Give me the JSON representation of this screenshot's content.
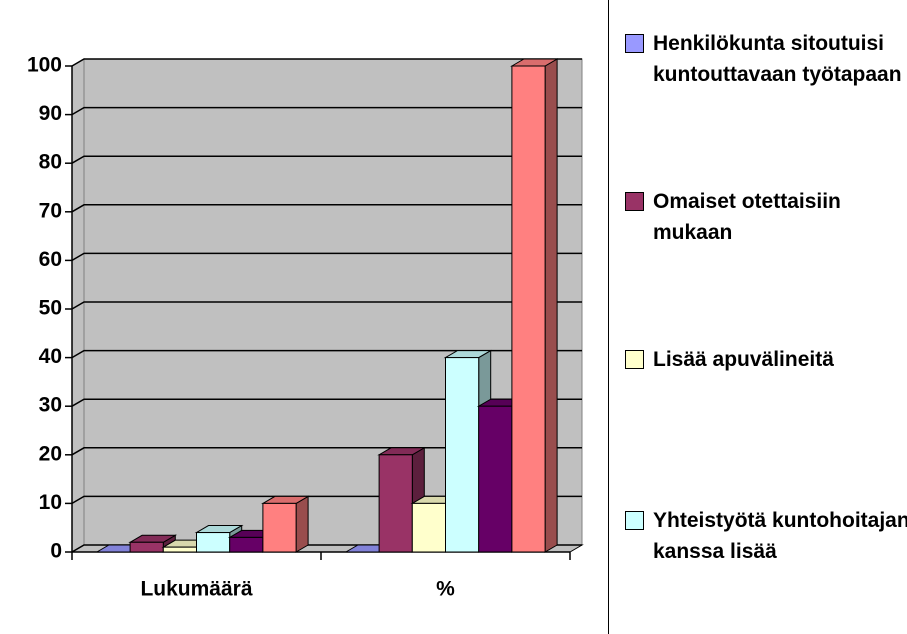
{
  "chart_data": {
    "type": "bar3d",
    "categories": [
      "Lukumäärä",
      "%"
    ],
    "series": [
      {
        "name": "Henkilökunta sitoutuisi kuntouttavaan työtapaan",
        "color": "#9999ff",
        "values": [
          0,
          0
        ]
      },
      {
        "name": "Omaiset otettaisiin mukaan",
        "color": "#993366",
        "values": [
          2,
          20
        ]
      },
      {
        "name": "Lisää apuvälineitä",
        "color": "#ffffcc",
        "values": [
          1,
          10
        ]
      },
      {
        "name": "Yhteistyötä kuntohoitajan kanssa lisää",
        "color": "#ccffff",
        "values": [
          4,
          40
        ]
      },
      {
        "color": "#660066",
        "values": [
          3,
          30
        ]
      },
      {
        "color": "#ff8080",
        "values": [
          10,
          100
        ]
      }
    ],
    "ylim": [
      0,
      100
    ],
    "yticks": [
      0,
      10,
      20,
      30,
      40,
      50,
      60,
      70,
      80,
      90,
      100
    ],
    "grid": true,
    "legend": "right"
  }
}
